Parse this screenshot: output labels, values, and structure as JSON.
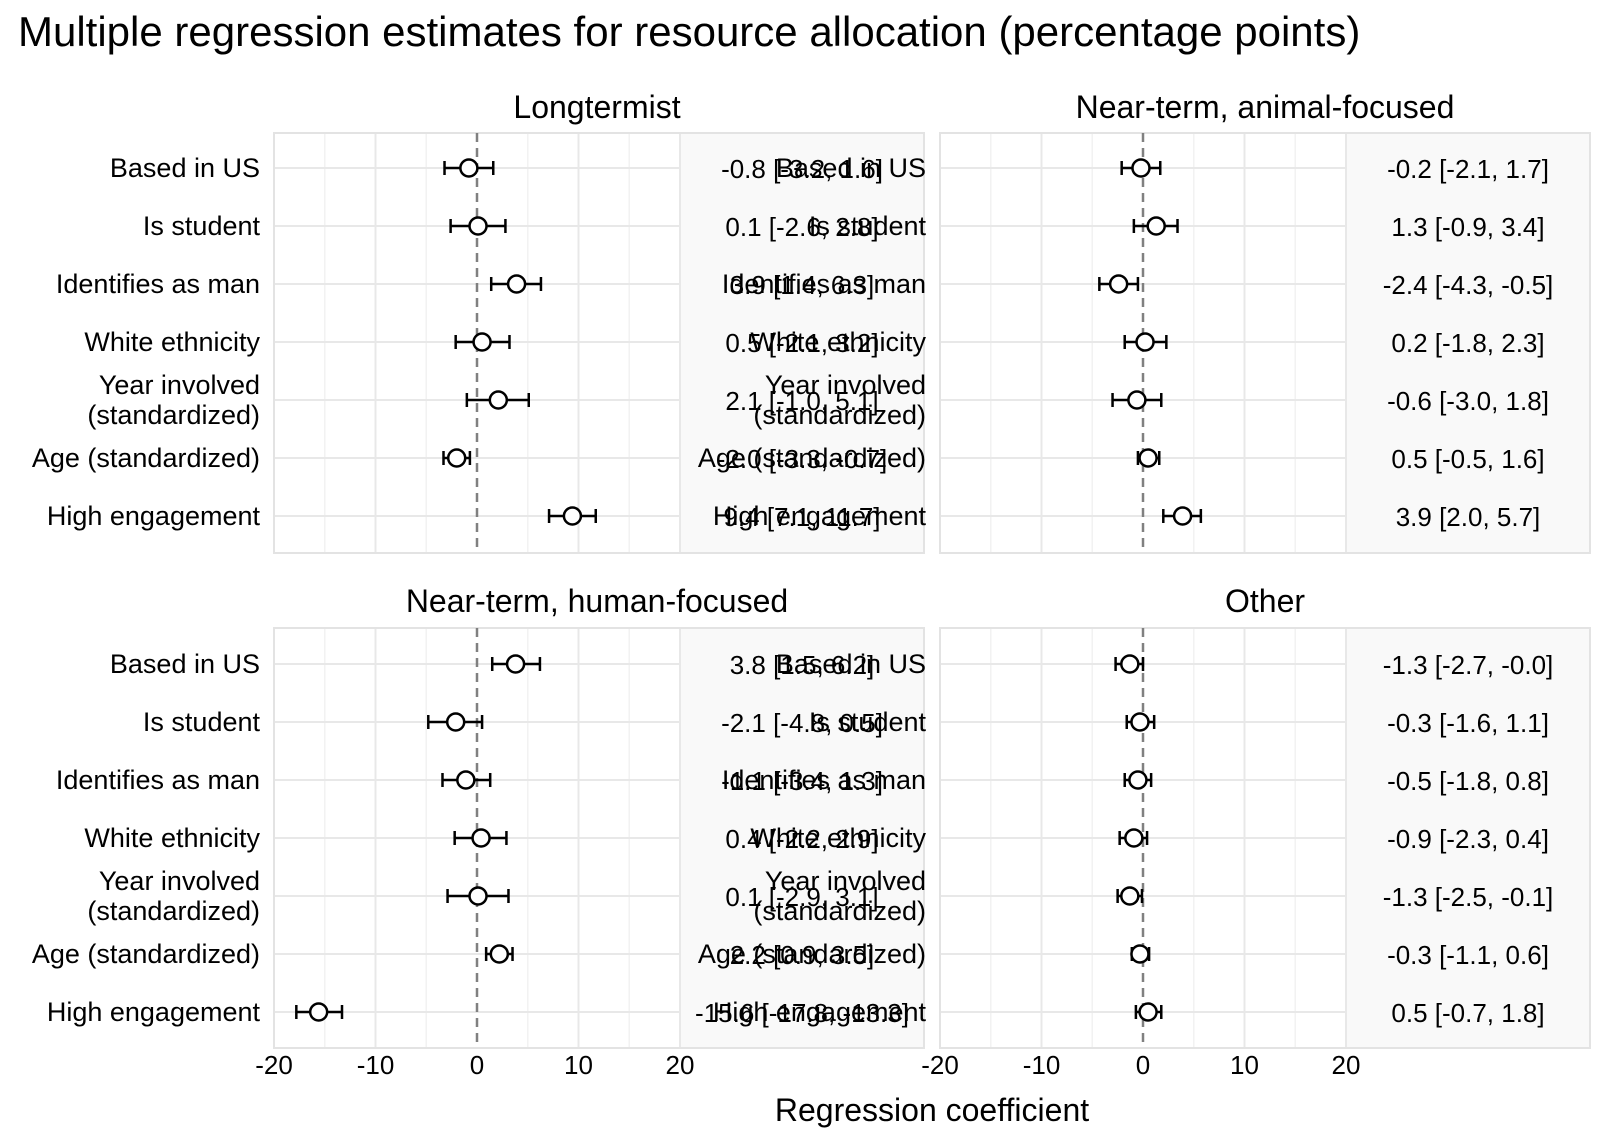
{
  "chart_data": {
    "type": "forest",
    "title": "Multiple regression estimates for resource allocation (percentage points)",
    "xlabel": "Regression coefficient",
    "xlim": [
      -20,
      20
    ],
    "x_ticks": [
      -20,
      -10,
      0,
      10,
      20
    ],
    "x_tick_labels": [
      "-20",
      "-10",
      "0",
      "10",
      "20"
    ],
    "reference_line": 0,
    "rows": [
      "Based in US",
      "Is student",
      "Identifies as man",
      "White ethnicity",
      "Year involved\n(standardized)",
      "Age (standardized)",
      "High engagement"
    ],
    "panels": [
      {
        "title": "Longtermist",
        "points": [
          {
            "estimate": -0.8,
            "lower": -3.2,
            "upper": 1.6,
            "label": "-0.8 [-3.2, 1.6]"
          },
          {
            "estimate": 0.1,
            "lower": -2.6,
            "upper": 2.8,
            "label": "0.1 [-2.6, 2.8]"
          },
          {
            "estimate": 3.9,
            "lower": 1.4,
            "upper": 6.3,
            "label": "3.9 [1.4, 6.3]"
          },
          {
            "estimate": 0.5,
            "lower": -2.1,
            "upper": 3.2,
            "label": "0.5 [-2.1, 3.2]"
          },
          {
            "estimate": 2.1,
            "lower": -1.0,
            "upper": 5.1,
            "label": "2.1 [-1.0, 5.1]"
          },
          {
            "estimate": -2.0,
            "lower": -3.3,
            "upper": -0.7,
            "label": "-2.0 [-3.3, -0.7]"
          },
          {
            "estimate": 9.4,
            "lower": 7.1,
            "upper": 11.7,
            "label": "9.4 [7.1, 11.7]"
          }
        ]
      },
      {
        "title": "Near-term, animal-focused",
        "points": [
          {
            "estimate": -0.2,
            "lower": -2.1,
            "upper": 1.7,
            "label": "-0.2 [-2.1, 1.7]"
          },
          {
            "estimate": 1.3,
            "lower": -0.9,
            "upper": 3.4,
            "label": "1.3 [-0.9, 3.4]"
          },
          {
            "estimate": -2.4,
            "lower": -4.3,
            "upper": -0.5,
            "label": "-2.4 [-4.3, -0.5]"
          },
          {
            "estimate": 0.2,
            "lower": -1.8,
            "upper": 2.3,
            "label": "0.2 [-1.8, 2.3]"
          },
          {
            "estimate": -0.6,
            "lower": -3.0,
            "upper": 1.8,
            "label": "-0.6 [-3.0, 1.8]"
          },
          {
            "estimate": 0.5,
            "lower": -0.5,
            "upper": 1.6,
            "label": "0.5 [-0.5, 1.6]"
          },
          {
            "estimate": 3.9,
            "lower": 2.0,
            "upper": 5.7,
            "label": "3.9 [2.0, 5.7]"
          }
        ]
      },
      {
        "title": "Near-term, human-focused",
        "points": [
          {
            "estimate": 3.8,
            "lower": 1.5,
            "upper": 6.2,
            "label": "3.8 [1.5, 6.2]"
          },
          {
            "estimate": -2.1,
            "lower": -4.8,
            "upper": 0.5,
            "label": "-2.1 [-4.8, 0.5]"
          },
          {
            "estimate": -1.1,
            "lower": -3.4,
            "upper": 1.3,
            "label": "-1.1 [-3.4, 1.3]"
          },
          {
            "estimate": 0.4,
            "lower": -2.2,
            "upper": 2.9,
            "label": "0.4 [-2.2, 2.9]"
          },
          {
            "estimate": 0.1,
            "lower": -2.9,
            "upper": 3.1,
            "label": "0.1 [-2.9, 3.1]"
          },
          {
            "estimate": 2.2,
            "lower": 0.9,
            "upper": 3.5,
            "label": "2.2 [0.9, 3.5]"
          },
          {
            "estimate": -15.6,
            "lower": -17.8,
            "upper": -13.3,
            "label": "-15.6 [-17.8, -13.3]"
          }
        ]
      },
      {
        "title": "Other",
        "points": [
          {
            "estimate": -1.3,
            "lower": -2.7,
            "upper": -0.0,
            "label": "-1.3 [-2.7, -0.0]"
          },
          {
            "estimate": -0.3,
            "lower": -1.6,
            "upper": 1.1,
            "label": "-0.3 [-1.6, 1.1]"
          },
          {
            "estimate": -0.5,
            "lower": -1.8,
            "upper": 0.8,
            "label": "-0.5 [-1.8, 0.8]"
          },
          {
            "estimate": -0.9,
            "lower": -2.3,
            "upper": 0.4,
            "label": "-0.9 [-2.3, 0.4]"
          },
          {
            "estimate": -1.3,
            "lower": -2.5,
            "upper": -0.1,
            "label": "-1.3 [-2.5, -0.1]"
          },
          {
            "estimate": -0.3,
            "lower": -1.1,
            "upper": 0.6,
            "label": "-0.3 [-1.1, 0.6]"
          },
          {
            "estimate": 0.5,
            "lower": -0.7,
            "upper": 1.8,
            "label": "0.5 [-0.7, 1.8]"
          }
        ]
      }
    ],
    "colors": {
      "panel_background": "#ffffff",
      "label_background": "#f9f9f9",
      "panel_border": "#e3e3e3",
      "grid_major": "#e8e8e8",
      "grid_minor": "#f2f2f2",
      "reference_line": "#808080",
      "marker_fill": "#ffffff",
      "marker_stroke": "#000000",
      "text": "#000000"
    }
  }
}
